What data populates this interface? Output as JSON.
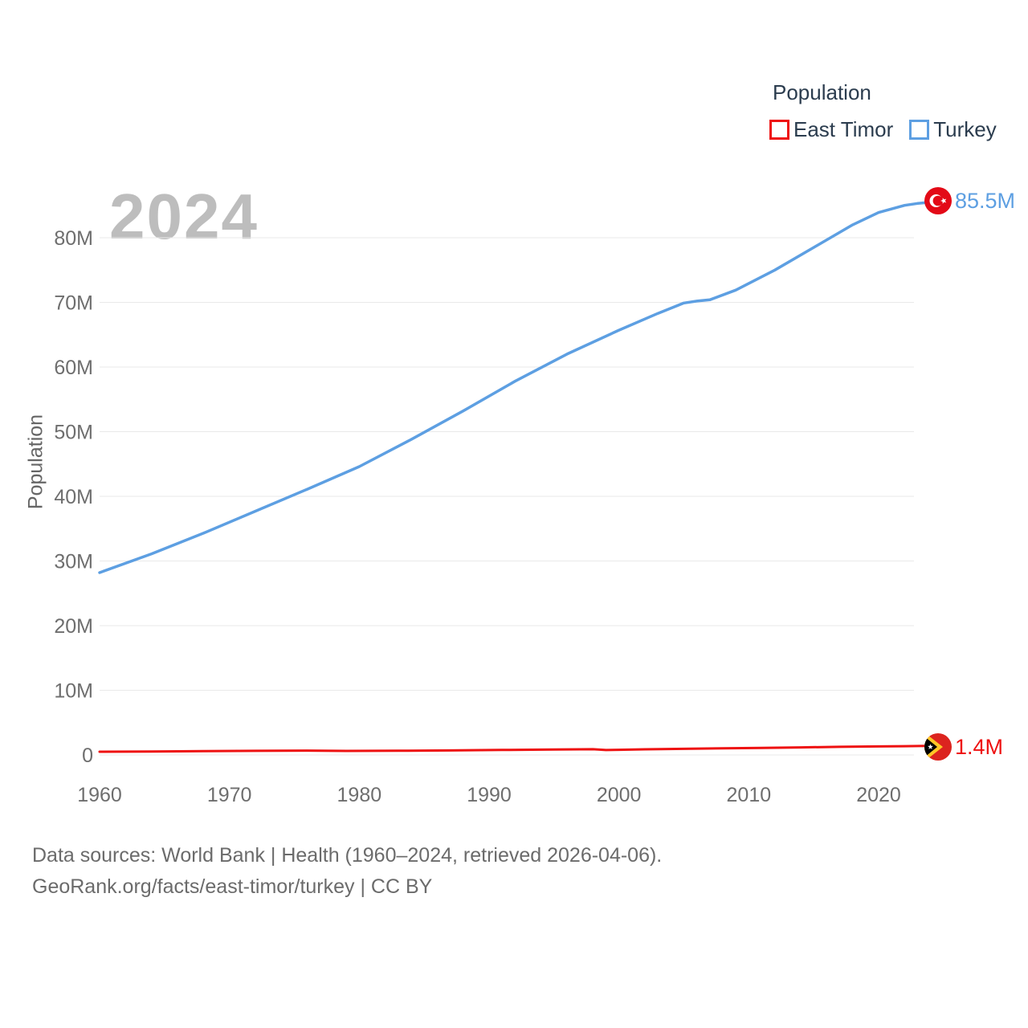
{
  "watermark": "2024",
  "legend": {
    "title": "Population",
    "items": [
      {
        "label": "East Timor",
        "color": "#ee1111"
      },
      {
        "label": "Turkey",
        "color": "#5d9fe2"
      }
    ]
  },
  "footer": {
    "line1": "Data sources: World Bank | Health (1960–2024, retrieved 2026-04-06).",
    "line2": "GeoRank.org/facts/east-timor/turkey | CC BY"
  },
  "chart_data": {
    "type": "line",
    "title": "Population",
    "xlabel": "",
    "ylabel": "Population",
    "units": {
      "x": "year",
      "y": "population_millions"
    },
    "x_range": [
      1960,
      2024
    ],
    "ylim": [
      0,
      86
    ],
    "grid": "horizontal",
    "legend_position": "top-right",
    "yticks": [
      {
        "value": 0,
        "label": "0"
      },
      {
        "value": 10,
        "label": "10M"
      },
      {
        "value": 20,
        "label": "20M"
      },
      {
        "value": 30,
        "label": "30M"
      },
      {
        "value": 40,
        "label": "40M"
      },
      {
        "value": 50,
        "label": "50M"
      },
      {
        "value": 60,
        "label": "60M"
      },
      {
        "value": 70,
        "label": "70M"
      },
      {
        "value": 80,
        "label": "80M"
      }
    ],
    "xticks": [
      {
        "value": 1960,
        "label": "1960"
      },
      {
        "value": 1970,
        "label": "1970"
      },
      {
        "value": 1980,
        "label": "1980"
      },
      {
        "value": 1990,
        "label": "1990"
      },
      {
        "value": 2000,
        "label": "2000"
      },
      {
        "value": 2010,
        "label": "2010"
      },
      {
        "value": 2020,
        "label": "2020"
      }
    ],
    "series": [
      {
        "name": "East Timor",
        "color": "#ee1111",
        "line_width": 3,
        "end_label": "1.4M",
        "points": [
          [
            1960,
            0.5
          ],
          [
            1964,
            0.54
          ],
          [
            1968,
            0.58
          ],
          [
            1972,
            0.63
          ],
          [
            1976,
            0.67
          ],
          [
            1979,
            0.62
          ],
          [
            1983,
            0.64
          ],
          [
            1987,
            0.7
          ],
          [
            1991,
            0.77
          ],
          [
            1995,
            0.84
          ],
          [
            1998,
            0.88
          ],
          [
            1999,
            0.76
          ],
          [
            2000,
            0.79
          ],
          [
            2002,
            0.87
          ],
          [
            2005,
            0.95
          ],
          [
            2008,
            1.02
          ],
          [
            2011,
            1.09
          ],
          [
            2014,
            1.17
          ],
          [
            2017,
            1.25
          ],
          [
            2020,
            1.32
          ],
          [
            2022,
            1.36
          ],
          [
            2024,
            1.4
          ]
        ]
      },
      {
        "name": "Turkey",
        "color": "#5d9fe2",
        "line_width": 3.5,
        "end_label": "85.5M",
        "points": [
          [
            1960,
            28.2
          ],
          [
            1964,
            31.1
          ],
          [
            1968,
            34.3
          ],
          [
            1972,
            37.7
          ],
          [
            1976,
            41.1
          ],
          [
            1980,
            44.6
          ],
          [
            1984,
            48.8
          ],
          [
            1988,
            53.2
          ],
          [
            1992,
            57.8
          ],
          [
            1996,
            62.0
          ],
          [
            2000,
            65.7
          ],
          [
            2003,
            68.3
          ],
          [
            2005,
            69.9
          ],
          [
            2006,
            70.2
          ],
          [
            2007,
            70.4
          ],
          [
            2009,
            71.9
          ],
          [
            2012,
            75.0
          ],
          [
            2015,
            78.5
          ],
          [
            2018,
            82.0
          ],
          [
            2020,
            83.9
          ],
          [
            2022,
            85.0
          ],
          [
            2023,
            85.3
          ],
          [
            2024,
            85.5
          ]
        ]
      }
    ]
  }
}
